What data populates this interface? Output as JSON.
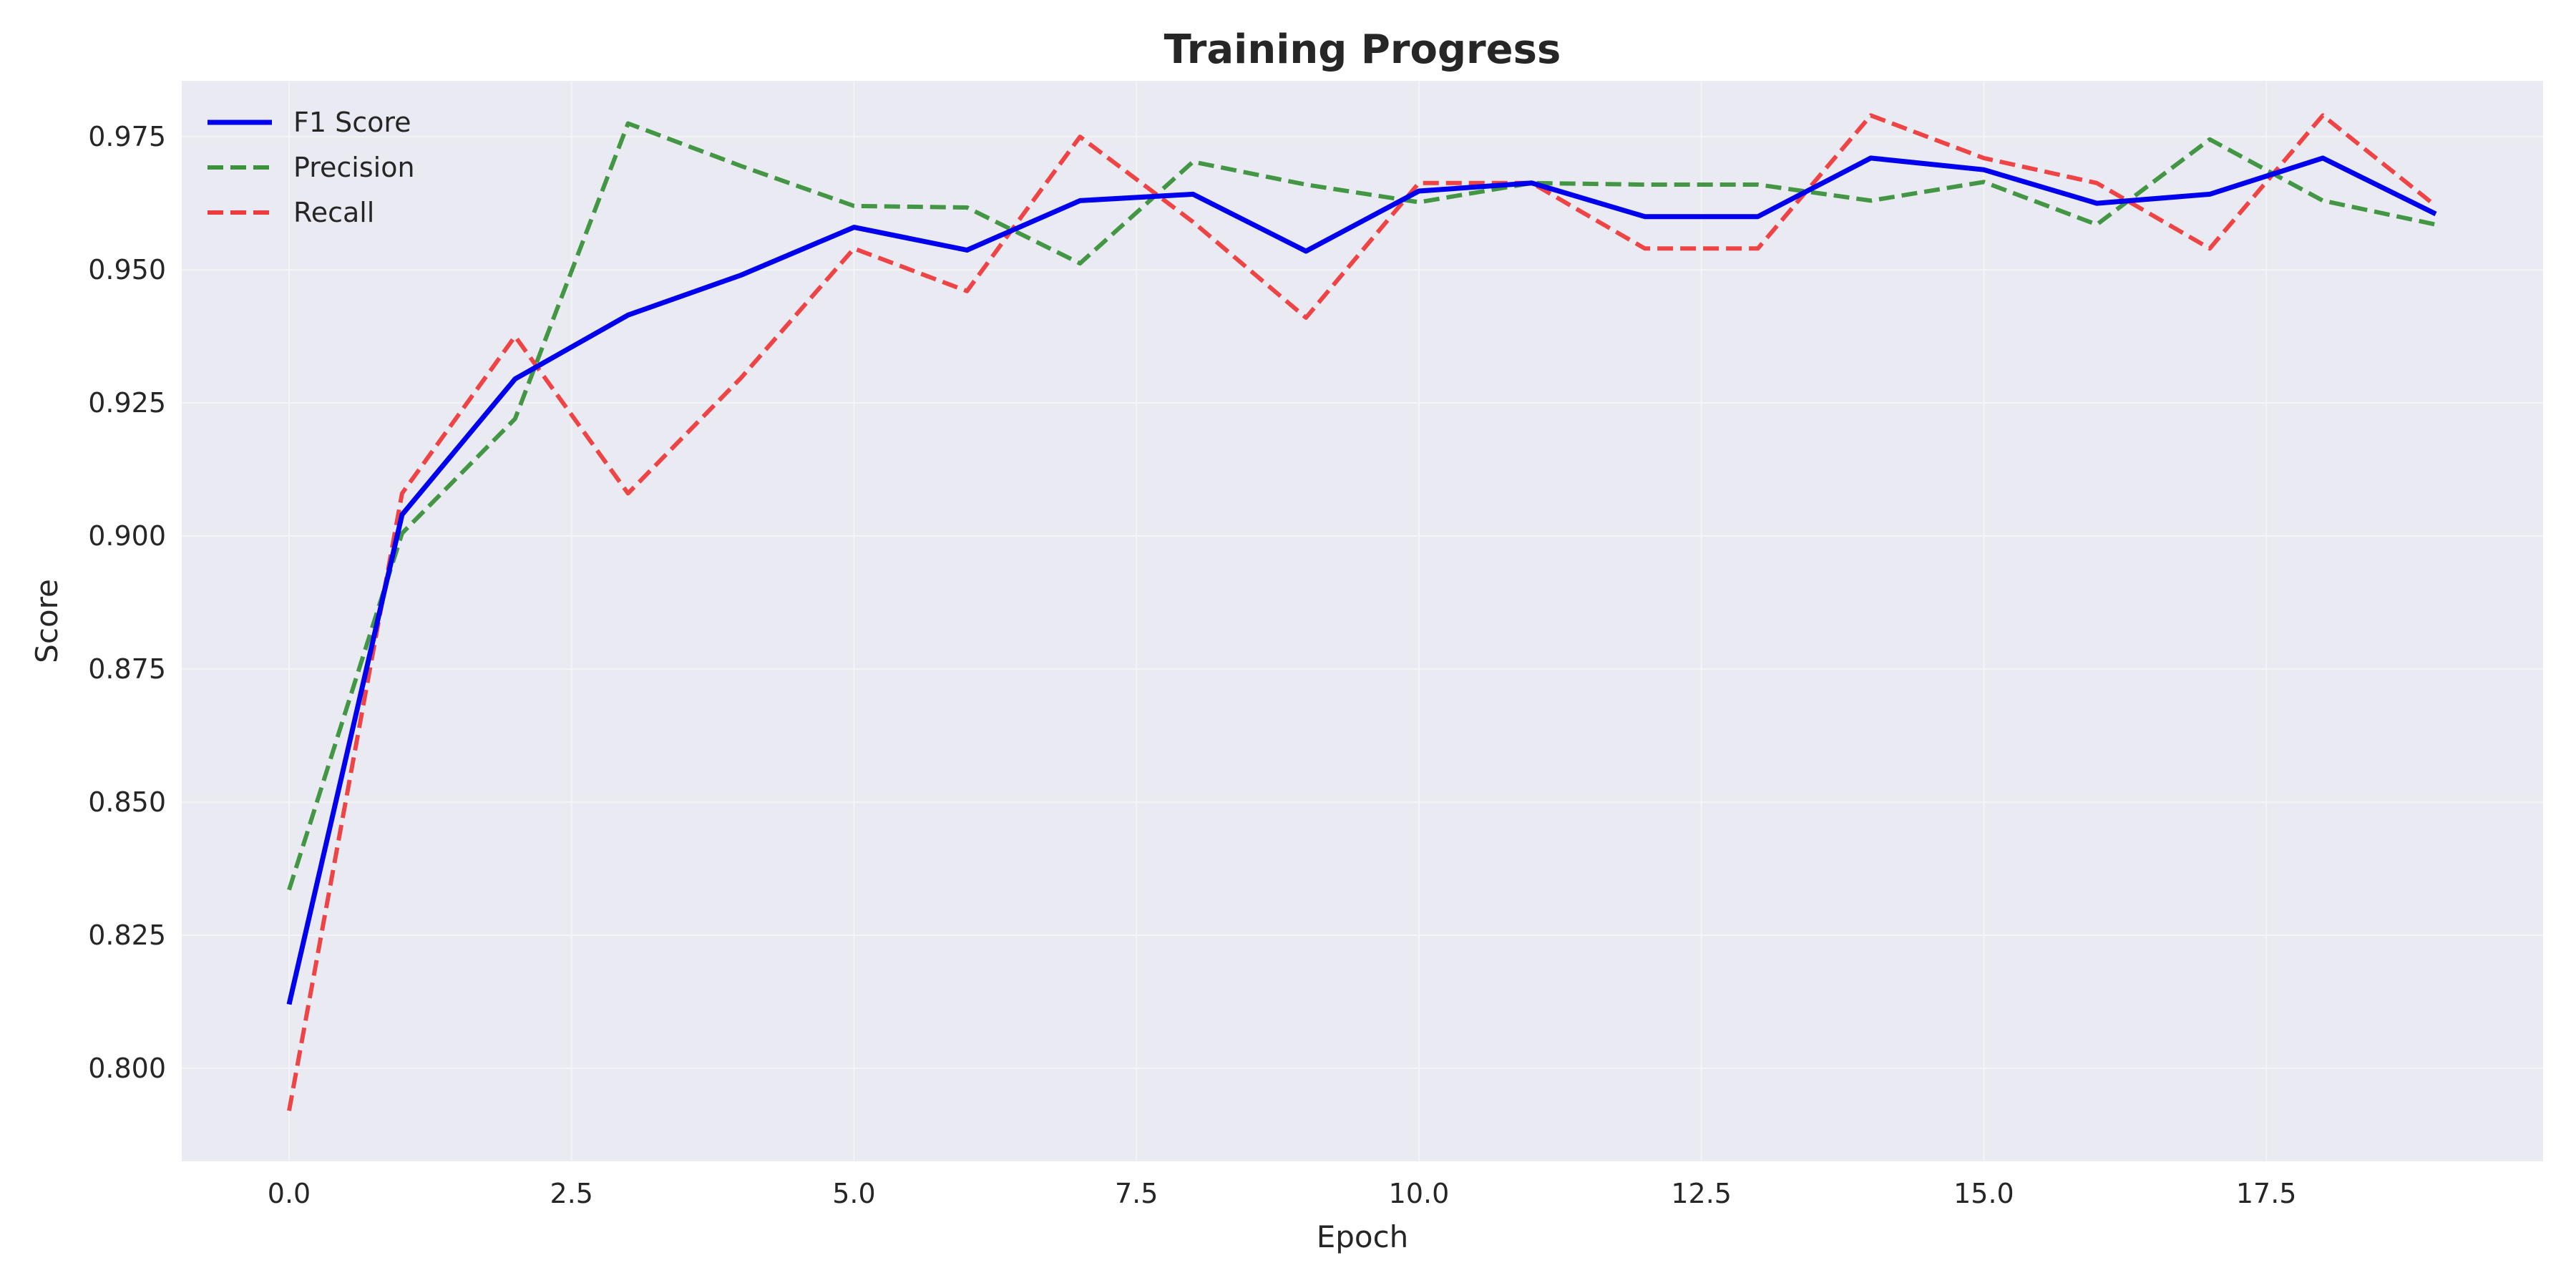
{
  "chart_data": {
    "type": "line",
    "title": "Training Progress",
    "xlabel": "Epoch",
    "ylabel": "Score",
    "xlim": [
      -0.95,
      19.95
    ],
    "ylim": [
      0.7825,
      0.9855
    ],
    "xticks": [
      0.0,
      2.5,
      5.0,
      7.5,
      10.0,
      12.5,
      15.0,
      17.5
    ],
    "xtick_labels": [
      "0.0",
      "2.5",
      "5.0",
      "7.5",
      "10.0",
      "12.5",
      "15.0",
      "17.5"
    ],
    "yticks": [
      0.8,
      0.825,
      0.85,
      0.875,
      0.9,
      0.925,
      0.95,
      0.975
    ],
    "ytick_labels": [
      "0.800",
      "0.825",
      "0.850",
      "0.875",
      "0.900",
      "0.925",
      "0.950",
      "0.975"
    ],
    "grid": true,
    "legend": "top-left",
    "x": [
      0,
      1,
      2,
      3,
      4,
      5,
      6,
      7,
      8,
      9,
      10,
      11,
      12,
      13,
      14,
      15,
      16,
      17,
      18,
      19
    ],
    "series": [
      {
        "name": "F1 Score",
        "color": "#0000ee",
        "style": "solid",
        "values": [
          0.812,
          0.904,
          0.9295,
          0.9415,
          0.949,
          0.958,
          0.9537,
          0.963,
          0.9642,
          0.9535,
          0.9648,
          0.9663,
          0.96,
          0.96,
          0.971,
          0.9688,
          0.9625,
          0.9642,
          0.971,
          0.9605
        ]
      },
      {
        "name": "Precision",
        "color": "#3a923a",
        "style": "dashed",
        "values": [
          0.8335,
          0.9005,
          0.922,
          0.9775,
          0.9695,
          0.962,
          0.9617,
          0.9512,
          0.9703,
          0.966,
          0.9627,
          0.9663,
          0.966,
          0.966,
          0.963,
          0.9665,
          0.9585,
          0.9745,
          0.963,
          0.9585
        ]
      },
      {
        "name": "Recall",
        "color": "#ee3b3b",
        "style": "dashed",
        "values": [
          0.792,
          0.908,
          0.9375,
          0.908,
          0.9297,
          0.954,
          0.946,
          0.975,
          0.959,
          0.941,
          0.9663,
          0.9663,
          0.954,
          0.954,
          0.979,
          0.971,
          0.9663,
          0.954,
          0.979,
          0.962
        ]
      }
    ]
  }
}
